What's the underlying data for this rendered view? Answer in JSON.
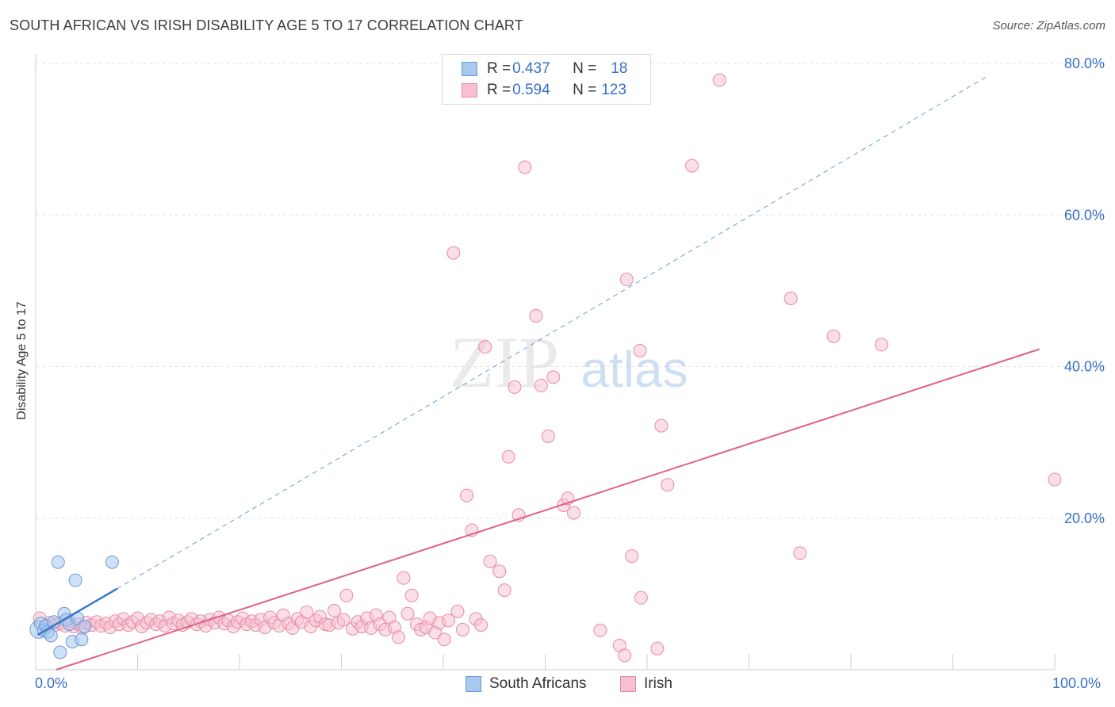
{
  "header": {
    "title": "SOUTH AFRICAN VS IRISH DISABILITY AGE 5 TO 17 CORRELATION CHART",
    "source": "Source: ZipAtlas.com"
  },
  "watermark": {
    "zip": "ZIP",
    "atlas": "atlas"
  },
  "legend": {
    "rows": [
      {
        "r_label": "R = ",
        "r_value": "0.437",
        "n_label": "N = ",
        "n_value": "18"
      },
      {
        "r_label": "R = ",
        "r_value": "0.594",
        "n_label": "N = ",
        "n_value": "123"
      }
    ]
  },
  "bottom_legend": {
    "south_africans": "South Africans",
    "irish": "Irish"
  },
  "colors": {
    "blue_fill": "#a8c8f0",
    "blue_stroke": "#6b9ad6",
    "blue_line": "#3a78c9",
    "pink_fill": "#f6c0d0",
    "pink_stroke": "#e88aa6",
    "pink_line": "#e0608a",
    "tick_text": "#3a6fc8",
    "grid": "#e2e2e2"
  },
  "chart_data": {
    "type": "scatter",
    "title": "SOUTH AFRICAN VS IRISH DISABILITY AGE 5 TO 17 CORRELATION CHART",
    "xlabel": "",
    "ylabel": "Disability Age 5 to 17",
    "xlim": [
      0,
      100
    ],
    "ylim": [
      0,
      80
    ],
    "x_tick_labels": {
      "min": "0.0%",
      "max": "100.0%"
    },
    "y_ticks": [
      {
        "value": 20,
        "label": "20.0%"
      },
      {
        "value": 40,
        "label": "40.0%"
      },
      {
        "value": 60,
        "label": "60.0%"
      },
      {
        "value": 80,
        "label": "80.0%"
      }
    ],
    "series": [
      {
        "name": "South Africans",
        "r": 0.437,
        "n": 18,
        "trend_solid": {
          "x": [
            0.2,
            8.0
          ],
          "y": [
            4.6,
            10.7
          ]
        },
        "trend_dashed": {
          "x": [
            8.0,
            93.5
          ],
          "y": [
            10.7,
            78.4
          ]
        },
        "points": [
          {
            "x": 0.3,
            "y": 5.3
          },
          {
            "x": 0.5,
            "y": 6.1
          },
          {
            "x": 0.8,
            "y": 5.2
          },
          {
            "x": 1.0,
            "y": 5.8
          },
          {
            "x": 1.2,
            "y": 5.0
          },
          {
            "x": 1.5,
            "y": 4.5
          },
          {
            "x": 1.8,
            "y": 6.3
          },
          {
            "x": 2.2,
            "y": 14.2
          },
          {
            "x": 2.4,
            "y": 2.3
          },
          {
            "x": 2.8,
            "y": 7.4
          },
          {
            "x": 3.0,
            "y": 6.6
          },
          {
            "x": 3.3,
            "y": 6.0
          },
          {
            "x": 3.6,
            "y": 3.7
          },
          {
            "x": 3.9,
            "y": 11.8
          },
          {
            "x": 4.1,
            "y": 6.8
          },
          {
            "x": 4.5,
            "y": 4.0
          },
          {
            "x": 4.8,
            "y": 5.7
          },
          {
            "x": 7.5,
            "y": 14.2
          }
        ]
      },
      {
        "name": "Irish",
        "r": 0.594,
        "n": 123,
        "trend": {
          "x": [
            2.0,
            98.5
          ],
          "y": [
            0.0,
            42.3
          ]
        },
        "points": [
          {
            "x": 0.4,
            "y": 6.8
          },
          {
            "x": 1.0,
            "y": 5.6
          },
          {
            "x": 1.4,
            "y": 6.2
          },
          {
            "x": 1.9,
            "y": 5.9
          },
          {
            "x": 2.4,
            "y": 6.1
          },
          {
            "x": 2.9,
            "y": 5.8
          },
          {
            "x": 3.3,
            "y": 6.4
          },
          {
            "x": 3.7,
            "y": 5.7
          },
          {
            "x": 4.2,
            "y": 6.0
          },
          {
            "x": 4.6,
            "y": 5.5
          },
          {
            "x": 5.0,
            "y": 6.2
          },
          {
            "x": 5.5,
            "y": 5.9
          },
          {
            "x": 6.0,
            "y": 6.3
          },
          {
            "x": 6.4,
            "y": 5.8
          },
          {
            "x": 6.9,
            "y": 6.1
          },
          {
            "x": 7.3,
            "y": 5.6
          },
          {
            "x": 7.8,
            "y": 6.4
          },
          {
            "x": 8.2,
            "y": 6.0
          },
          {
            "x": 8.6,
            "y": 6.7
          },
          {
            "x": 9.1,
            "y": 5.9
          },
          {
            "x": 9.5,
            "y": 6.3
          },
          {
            "x": 10.0,
            "y": 6.8
          },
          {
            "x": 10.4,
            "y": 5.7
          },
          {
            "x": 10.9,
            "y": 6.2
          },
          {
            "x": 11.3,
            "y": 6.6
          },
          {
            "x": 11.8,
            "y": 6.0
          },
          {
            "x": 12.2,
            "y": 6.4
          },
          {
            "x": 12.7,
            "y": 5.8
          },
          {
            "x": 13.1,
            "y": 6.9
          },
          {
            "x": 13.5,
            "y": 6.1
          },
          {
            "x": 14.0,
            "y": 6.5
          },
          {
            "x": 14.4,
            "y": 5.9
          },
          {
            "x": 14.9,
            "y": 6.3
          },
          {
            "x": 15.3,
            "y": 6.7
          },
          {
            "x": 15.8,
            "y": 6.0
          },
          {
            "x": 16.2,
            "y": 6.4
          },
          {
            "x": 16.7,
            "y": 5.8
          },
          {
            "x": 17.1,
            "y": 6.6
          },
          {
            "x": 17.6,
            "y": 6.2
          },
          {
            "x": 18.0,
            "y": 6.9
          },
          {
            "x": 18.5,
            "y": 6.1
          },
          {
            "x": 18.9,
            "y": 6.5
          },
          {
            "x": 19.4,
            "y": 5.7
          },
          {
            "x": 19.8,
            "y": 6.3
          },
          {
            "x": 20.3,
            "y": 6.8
          },
          {
            "x": 20.7,
            "y": 6.0
          },
          {
            "x": 21.2,
            "y": 6.4
          },
          {
            "x": 21.6,
            "y": 5.9
          },
          {
            "x": 22.1,
            "y": 6.6
          },
          {
            "x": 22.5,
            "y": 5.6
          },
          {
            "x": 23.0,
            "y": 6.9
          },
          {
            "x": 23.4,
            "y": 6.2
          },
          {
            "x": 23.9,
            "y": 5.8
          },
          {
            "x": 24.3,
            "y": 7.2
          },
          {
            "x": 24.8,
            "y": 6.1
          },
          {
            "x": 25.2,
            "y": 5.5
          },
          {
            "x": 25.7,
            "y": 6.7
          },
          {
            "x": 26.1,
            "y": 6.3
          },
          {
            "x": 26.6,
            "y": 7.6
          },
          {
            "x": 27.0,
            "y": 5.7
          },
          {
            "x": 27.5,
            "y": 6.5
          },
          {
            "x": 27.9,
            "y": 7.0
          },
          {
            "x": 28.4,
            "y": 6.0
          },
          {
            "x": 28.8,
            "y": 5.9
          },
          {
            "x": 29.3,
            "y": 7.8
          },
          {
            "x": 29.7,
            "y": 6.2
          },
          {
            "x": 30.2,
            "y": 6.6
          },
          {
            "x": 30.5,
            "y": 9.8
          },
          {
            "x": 31.1,
            "y": 5.4
          },
          {
            "x": 31.6,
            "y": 6.3
          },
          {
            "x": 32.0,
            "y": 5.7
          },
          {
            "x": 32.5,
            "y": 6.8
          },
          {
            "x": 32.9,
            "y": 5.5
          },
          {
            "x": 33.4,
            "y": 7.2
          },
          {
            "x": 33.8,
            "y": 6.0
          },
          {
            "x": 34.3,
            "y": 5.3
          },
          {
            "x": 34.7,
            "y": 6.9
          },
          {
            "x": 35.2,
            "y": 5.6
          },
          {
            "x": 35.6,
            "y": 4.3
          },
          {
            "x": 36.1,
            "y": 12.1
          },
          {
            "x": 36.5,
            "y": 7.4
          },
          {
            "x": 36.9,
            "y": 9.8
          },
          {
            "x": 37.4,
            "y": 6.0
          },
          {
            "x": 37.8,
            "y": 5.3
          },
          {
            "x": 38.3,
            "y": 5.6
          },
          {
            "x": 38.7,
            "y": 6.8
          },
          {
            "x": 39.2,
            "y": 4.9
          },
          {
            "x": 39.6,
            "y": 6.2
          },
          {
            "x": 40.1,
            "y": 4.0
          },
          {
            "x": 40.5,
            "y": 6.5
          },
          {
            "x": 41.0,
            "y": 55.0
          },
          {
            "x": 41.4,
            "y": 7.7
          },
          {
            "x": 41.9,
            "y": 5.3
          },
          {
            "x": 42.3,
            "y": 23.0
          },
          {
            "x": 42.8,
            "y": 18.4
          },
          {
            "x": 43.2,
            "y": 6.7
          },
          {
            "x": 43.7,
            "y": 5.9
          },
          {
            "x": 44.1,
            "y": 42.6
          },
          {
            "x": 44.6,
            "y": 14.3
          },
          {
            "x": 45.5,
            "y": 13.0
          },
          {
            "x": 46.0,
            "y": 10.5
          },
          {
            "x": 46.4,
            "y": 28.1
          },
          {
            "x": 47.0,
            "y": 37.3
          },
          {
            "x": 47.4,
            "y": 20.4
          },
          {
            "x": 48.0,
            "y": 66.3
          },
          {
            "x": 49.1,
            "y": 46.7
          },
          {
            "x": 49.6,
            "y": 37.5
          },
          {
            "x": 50.3,
            "y": 30.8
          },
          {
            "x": 50.8,
            "y": 38.6
          },
          {
            "x": 51.8,
            "y": 21.7
          },
          {
            "x": 52.2,
            "y": 22.6
          },
          {
            "x": 52.8,
            "y": 20.7
          },
          {
            "x": 55.4,
            "y": 5.2
          },
          {
            "x": 57.3,
            "y": 3.2
          },
          {
            "x": 58.0,
            "y": 51.5
          },
          {
            "x": 58.5,
            "y": 15.0
          },
          {
            "x": 59.4,
            "y": 9.5
          }
        ]
      }
    ],
    "irish_far_points": [
      {
        "x": 57.8,
        "y": 1.9
      },
      {
        "x": 59.3,
        "y": 42.1
      },
      {
        "x": 61.4,
        "y": 32.2
      },
      {
        "x": 61.0,
        "y": 2.8
      },
      {
        "x": 62.0,
        "y": 24.4
      },
      {
        "x": 64.4,
        "y": 66.5
      },
      {
        "x": 67.1,
        "y": 77.8
      },
      {
        "x": 74.1,
        "y": 49.0
      },
      {
        "x": 75.0,
        "y": 15.4
      },
      {
        "x": 78.3,
        "y": 44.0
      },
      {
        "x": 83.0,
        "y": 42.9
      },
      {
        "x": 100.0,
        "y": 25.1
      }
    ]
  }
}
